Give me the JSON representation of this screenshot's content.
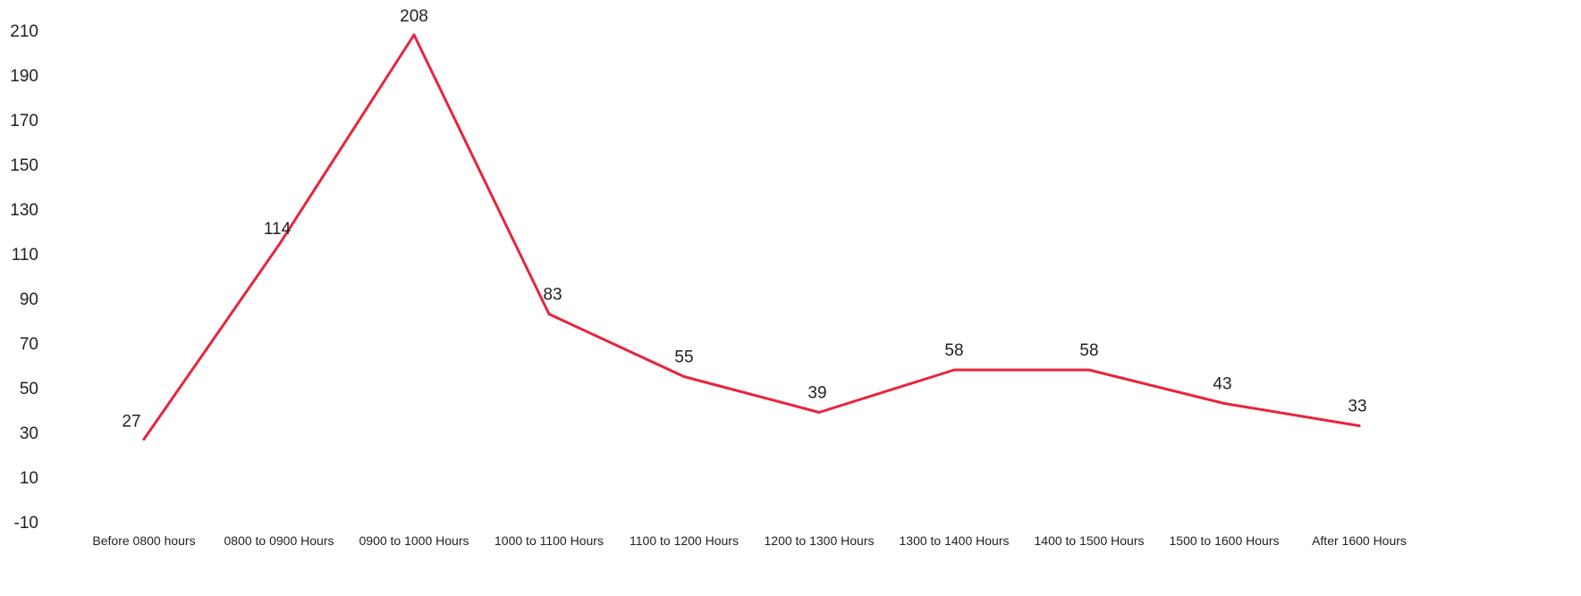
{
  "chart_data": {
    "type": "line",
    "title": "",
    "xlabel": "",
    "ylabel": "",
    "categories": [
      "Before 0800 hours",
      "0800 to 0900 Hours",
      "0900 to 1000 Hours",
      "1000 to 1100 Hours",
      "1100 to 1200 Hours",
      "1200 to 1300 Hours",
      "1300 to 1400 Hours",
      "1400 to 1500 Hours",
      "1500 to 1600 Hours",
      "After 1600 Hours"
    ],
    "series": [
      {
        "values": [
          27,
          114,
          208,
          83,
          55,
          39,
          58,
          58,
          43,
          33
        ],
        "color": "#e8243c"
      }
    ],
    "data_labels": [
      "27",
      "114",
      "208",
      "83",
      "55",
      "39",
      "58",
      "58",
      "43",
      "33"
    ],
    "ylim": [
      -10,
      210
    ],
    "yticks": [
      "210",
      "190",
      "170",
      "150",
      "130",
      "110",
      "90",
      "70",
      "50",
      "30",
      "10",
      "-10"
    ],
    "grid": false,
    "legend": "none"
  }
}
